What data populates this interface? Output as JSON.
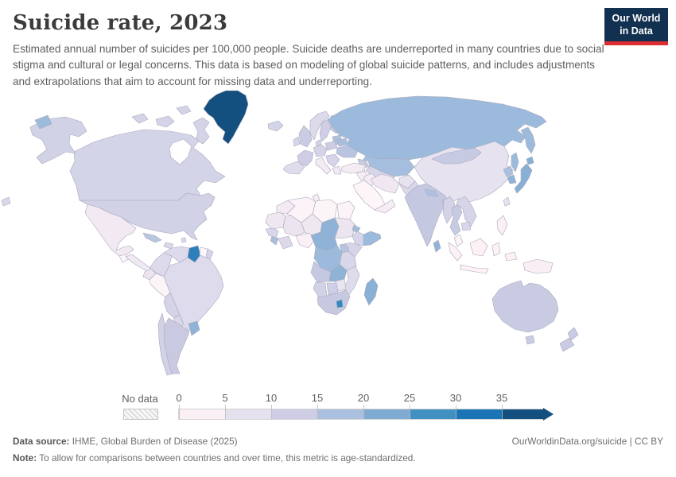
{
  "header": {
    "title": "Suicide rate, 2023",
    "subtitle": "Estimated annual number of suicides per 100,000 people. Suicide deaths are underreported in many countries due to social stigma and cultural or legal concerns. This data is based on modeling of global suicide patterns, and includes adjustments and extrapolations that aim to account for missing data and underreporting.",
    "logo": {
      "line1": "Our World",
      "line2": "in Data",
      "bg": "#12304f",
      "accent": "#dc2e32"
    }
  },
  "legend": {
    "no_data_label": "No data",
    "ticks": [
      "0",
      "5",
      "10",
      "15",
      "20",
      "25",
      "30",
      "35"
    ],
    "bins": [
      {
        "range": "0-5",
        "color": "#fbf0f6"
      },
      {
        "range": "5-10",
        "color": "#e6e1ef"
      },
      {
        "range": "10-15",
        "color": "#cecde5"
      },
      {
        "range": "15-20",
        "color": "#abc0de"
      },
      {
        "range": "20-25",
        "color": "#7fabd2"
      },
      {
        "range": "25-30",
        "color": "#4190c2"
      },
      {
        "range": "30-35",
        "color": "#1b74b6"
      },
      {
        "range": "35+",
        "color": "#134f7f"
      }
    ]
  },
  "footer": {
    "source_label": "Data source:",
    "source": " IHME, Global Burden of Disease (2025)",
    "right": "OurWorldinData.org/suicide | CC BY",
    "note_label": "Note:",
    "note": " To allow for comparisons between countries and over time, this metric is age-standardized."
  },
  "chart_data": {
    "type": "choropleth-map",
    "title": "Suicide rate, 2023",
    "year": "2023",
    "unit": "suicides per 100,000 people",
    "ocean_color": "#ffffff",
    "no_data_pattern": "diagonal-hatch",
    "legend_bins": [
      "0-5",
      "5-10",
      "10-15",
      "15-20",
      "20-25",
      "25-30",
      "30-35",
      "35+"
    ],
    "legend_colors": [
      "#fbf0f6",
      "#e6e1ef",
      "#cecde5",
      "#abc0de",
      "#7fabd2",
      "#4190c2",
      "#1b74b6",
      "#134f7f"
    ],
    "regions_format": [
      "fill_color",
      "value_range_per_100k"
    ],
    "regions": {
      "greenland": [
        "#134f7f",
        "35+"
      ],
      "canada_islands": [
        "#d4d4e8",
        "10-15"
      ],
      "canada": [
        "#d4d4e8",
        "10-15"
      ],
      "hudson_bay": [
        "#ffffff",
        "water"
      ],
      "alaska": [
        "#d2d2e6",
        "10-15"
      ],
      "chukotka_west": [
        "#9cbbdc",
        "15-20"
      ],
      "usa": [
        "#d2d2e6",
        "10-15"
      ],
      "mexico": [
        "#f3e9f3",
        "0-5"
      ],
      "guatemala": [
        "#fdf6f9",
        "0-5"
      ],
      "central_america": [
        "#f0e8f2",
        "0-5"
      ],
      "cuba": [
        "#bac6e0",
        "10-15"
      ],
      "hispaniola": [
        "#d9d8ea",
        "5-10"
      ],
      "caribbean": [
        "#d9d8ea",
        "5-10"
      ],
      "left_edge_land": [
        "#d8d8ea",
        "10-15"
      ],
      "colombia": [
        "#dedaeb",
        "5-10"
      ],
      "venezuela": [
        "#dcdaeb",
        "5-10"
      ],
      "guyana": [
        "#2e7fb9",
        "25-30"
      ],
      "suriname": [
        "#fdf6fa",
        "0-5"
      ],
      "french_guiana": [
        "#d5d4e8",
        "10-15"
      ],
      "ecuador": [
        "#ece5f0",
        "5-10"
      ],
      "peru": [
        "#fdf4f8",
        "0-5"
      ],
      "brazil": [
        "#dedbec",
        "5-10"
      ],
      "bolivia": [
        "#d4d3e7",
        "10-15"
      ],
      "paraguay": [
        "#d8d6e9",
        "5-10"
      ],
      "chile": [
        "#d2d2e6",
        "10-15"
      ],
      "argentina": [
        "#c9cae2",
        "10-15"
      ],
      "uruguay": [
        "#8fb4d7",
        "15-20"
      ],
      "iceland": [
        "#d4d4e8",
        "10-15"
      ],
      "uk": [
        "#cbcbe4",
        "10-15"
      ],
      "ireland": [
        "#d6d5e9",
        "5-10"
      ],
      "norway": [
        "#dcdaeb",
        "5-10"
      ],
      "sweden": [
        "#cfcee6",
        "10-15"
      ],
      "finland": [
        "#c3c8e2",
        "10-15"
      ],
      "baltics": [
        "#aec1de",
        "15-20"
      ],
      "denmark": [
        "#d4d3e7",
        "10-15"
      ],
      "germany_central": [
        "#d5d3e8",
        "5-10"
      ],
      "france": [
        "#cfcde5",
        "10-15"
      ],
      "iberia": [
        "#e0dcec",
        "5-10"
      ],
      "italy": [
        "#f3eaf4",
        "0-5"
      ],
      "poland": [
        "#cccce4",
        "10-15"
      ],
      "belarus": [
        "#a9bedd",
        "15-20"
      ],
      "ukraine": [
        "#b9c4e0",
        "10-15"
      ],
      "se_europe": [
        "#d6d4e8",
        "5-10"
      ],
      "greece": [
        "#f0e8f3",
        "0-5"
      ],
      "russia": [
        "#9cbbdc",
        "15-20"
      ],
      "kamchatka": [
        "#9cbbdc",
        "15-20"
      ],
      "sakhalin": [
        "#9cbbdc",
        "15-20"
      ],
      "caspian_sea": [
        "#ffffff",
        "water"
      ],
      "kazakhstan": [
        "#a6bedd",
        "15-20"
      ],
      "central_asia": [
        "#d8d5e8",
        "5-10"
      ],
      "caucasus": [
        "#c8cade",
        "10-15"
      ],
      "turkey": [
        "#f5ebf3",
        "0-5"
      ],
      "levant": [
        "#f5ecf4",
        "0-5"
      ],
      "iraq": [
        "#f3eaf3",
        "0-5"
      ],
      "saudi": [
        "#fdf5f8",
        "0-5"
      ],
      "yemen_oman": [
        "#f6ecf3",
        "0-5"
      ],
      "iran": [
        "#f1e7f1",
        "0-5"
      ],
      "afghanistan": [
        "#e7e2ef",
        "5-10"
      ],
      "pakistan": [
        "#dbd8ea",
        "5-10"
      ],
      "india": [
        "#c4c8e1",
        "10-15"
      ],
      "nepal": [
        "#aec1de",
        "15-20"
      ],
      "bangladesh": [
        "#cacce3",
        "10-15"
      ],
      "sri_lanka": [
        "#8fb4d7",
        "15-20"
      ],
      "china": [
        "#e7e2f0",
        "5-10"
      ],
      "mongolia": [
        "#c6cbe3",
        "10-15"
      ],
      "taiwan": [
        "#e8e3f0",
        "5-10"
      ],
      "north_korea": [
        "#a9c0de",
        "15-20"
      ],
      "south_korea": [
        "#8fb4d7",
        "15-20"
      ],
      "japan": [
        "#88b0d5",
        "15-20"
      ],
      "hokkaido": [
        "#88b0d5",
        "15-20"
      ],
      "myanmar": [
        "#d3d2e7",
        "5-10"
      ],
      "thailand": [
        "#c6cae2",
        "10-15"
      ],
      "laos_vietnam": [
        "#d6d4e8",
        "5-10"
      ],
      "cambodia": [
        "#d9d7e9",
        "5-10"
      ],
      "malaysia": [
        "#fdf3f7",
        "0-5"
      ],
      "sumatra": [
        "#fdf1f6",
        "0-5"
      ],
      "java": [
        "#fdf1f6",
        "0-5"
      ],
      "borneo": [
        "#fdf1f6",
        "0-5"
      ],
      "sulawesi": [
        "#fdf1f6",
        "0-5"
      ],
      "indonesia_east": [
        "#fdf1f6",
        "0-5"
      ],
      "philippines": [
        "#faeff5",
        "0-5"
      ],
      "new_guinea": [
        "#f8eef4",
        "0-5"
      ],
      "australia": [
        "#c9cbe3",
        "10-15"
      ],
      "tasmania": [
        "#c9cbe3",
        "10-15"
      ],
      "nz_north": [
        "#c9cbe3",
        "10-15"
      ],
      "nz_south": [
        "#c9cbe3",
        "10-15"
      ],
      "morocco": [
        "#f2e9f3",
        "0-5"
      ],
      "algeria": [
        "#fbf3f7",
        "0-5"
      ],
      "tunisia": [
        "#f5ecf4",
        "0-5"
      ],
      "libya": [
        "#fcf5f8",
        "0-5"
      ],
      "egypt": [
        "#fbf3f7",
        "0-5"
      ],
      "mauritania": [
        "#f0e8f1",
        "5-10"
      ],
      "mali": [
        "#ece5f0",
        "5-10"
      ],
      "niger": [
        "#f0e8f1",
        "5-10"
      ],
      "chad": [
        "#8fb3d7",
        "15-20"
      ],
      "sudan": [
        "#ece5f0",
        "5-10"
      ],
      "eritrea": [
        "#a3bcdb",
        "15-20"
      ],
      "ethiopia": [
        "#d6d5e9",
        "5-10"
      ],
      "somalia": [
        "#9cbadb",
        "15-20"
      ],
      "senegal": [
        "#d9d7e9",
        "5-10"
      ],
      "guinea": [
        "#a9bfdc",
        "15-20"
      ],
      "west_africa_coast": [
        "#dcd9ea",
        "5-10"
      ],
      "nigeria": [
        "#fbf0f5",
        "0-5"
      ],
      "cameroon_car": [
        "#8fb3d7",
        "15-20"
      ],
      "drc": [
        "#9cbadb",
        "15-20"
      ],
      "uganda": [
        "#b5c4e0",
        "10-15"
      ],
      "kenya": [
        "#d6d4e8",
        "5-10"
      ],
      "tanzania": [
        "#d8d6e9",
        "5-10"
      ],
      "angola": [
        "#c4c8e1",
        "10-15"
      ],
      "zambia": [
        "#8fb3d7",
        "15-20"
      ],
      "mozambique": [
        "#dedbeb",
        "5-10"
      ],
      "zimbabwe": [
        "#eae4ef",
        "5-10"
      ],
      "namibia": [
        "#d2d2e6",
        "10-15"
      ],
      "botswana": [
        "#cfcfe5",
        "10-15"
      ],
      "south_africa": [
        "#c7c9e1",
        "10-15"
      ],
      "lesotho": [
        "#3389bd",
        "25-30"
      ],
      "madagascar": [
        "#89b1d5",
        "15-20"
      ]
    }
  }
}
